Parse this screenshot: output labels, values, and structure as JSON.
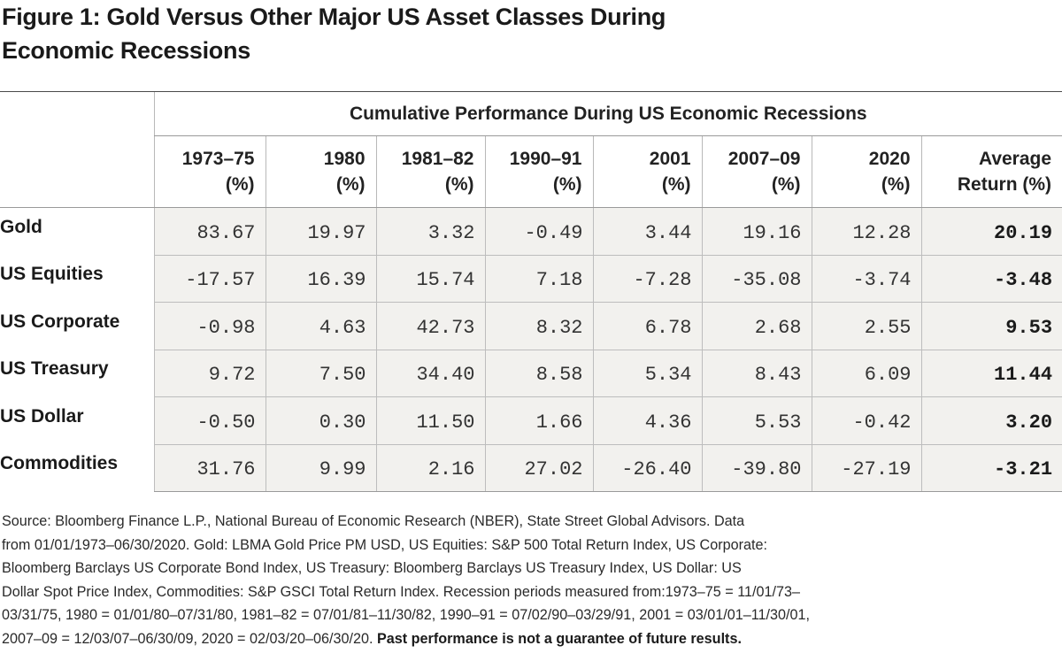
{
  "title_line1": "Figure 1: Gold Versus Other Major US Asset Classes During",
  "title_line2": "Economic Recessions",
  "group_header": "Cumulative Performance During US Economic Recessions",
  "columns": [
    {
      "l1": "1973–75",
      "l2": "(%)"
    },
    {
      "l1": "1980",
      "l2": "(%)"
    },
    {
      "l1": "1981–82",
      "l2": "(%)"
    },
    {
      "l1": "1990–91",
      "l2": "(%)"
    },
    {
      "l1": "2001",
      "l2": "(%)"
    },
    {
      "l1": "2007–09",
      "l2": "(%)"
    },
    {
      "l1": "2020",
      "l2": "(%)"
    },
    {
      "l1": "Average",
      "l2": "Return (%)"
    }
  ],
  "rows": [
    {
      "label": "Gold",
      "values": [
        "83.67",
        "19.97",
        "3.32",
        "-0.49",
        "3.44",
        "19.16",
        "12.28",
        "20.19"
      ]
    },
    {
      "label": "US Equities",
      "values": [
        "-17.57",
        "16.39",
        "15.74",
        "7.18",
        "-7.28",
        "-35.08",
        "-3.74",
        "-3.48"
      ]
    },
    {
      "label": "US Corporate",
      "values": [
        "-0.98",
        "4.63",
        "42.73",
        "8.32",
        "6.78",
        "2.68",
        "2.55",
        "9.53"
      ]
    },
    {
      "label": "US Treasury",
      "values": [
        "9.72",
        "7.50",
        "34.40",
        "8.58",
        "5.34",
        "8.43",
        "6.09",
        "11.44"
      ]
    },
    {
      "label": "US Dollar",
      "values": [
        "-0.50",
        "0.30",
        "11.50",
        "1.66",
        "4.36",
        "5.53",
        "-0.42",
        "3.20"
      ]
    },
    {
      "label": "Commodities",
      "values": [
        "31.76",
        "9.99",
        "2.16",
        "27.02",
        "-26.40",
        "-39.80",
        "-27.19",
        "-3.21"
      ]
    }
  ],
  "footnote_lines": [
    "Source: Bloomberg Finance L.P., National Bureau of Economic Research (NBER), State Street Global Advisors. Data",
    "from 01/01/1973–06/30/2020. Gold: LBMA Gold Price PM USD, US Equities: S&P 500 Total Return Index, US Corporate:",
    "Bloomberg Barclays US Corporate Bond Index, US Treasury: Bloomberg Barclays US Treasury Index, US Dollar: US",
    "Dollar Spot Price Index, Commodities: S&P GSCI Total Return Index. Recession periods measured from:1973–75 = 11/01/73–",
    "03/31/75, 1980 = 01/01/80–07/31/80, 1981–82 = 07/01/81–11/30/82, 1990–91 = 07/02/90–03/29/91, 2001 = 03/01/01–11/30/01,"
  ],
  "footnote_last_line": "2007–09 = 12/03/07–06/30/09, 2020 = 02/03/20–06/30/20.",
  "footnote_bold": "Past performance is not a guarantee of future results."
}
